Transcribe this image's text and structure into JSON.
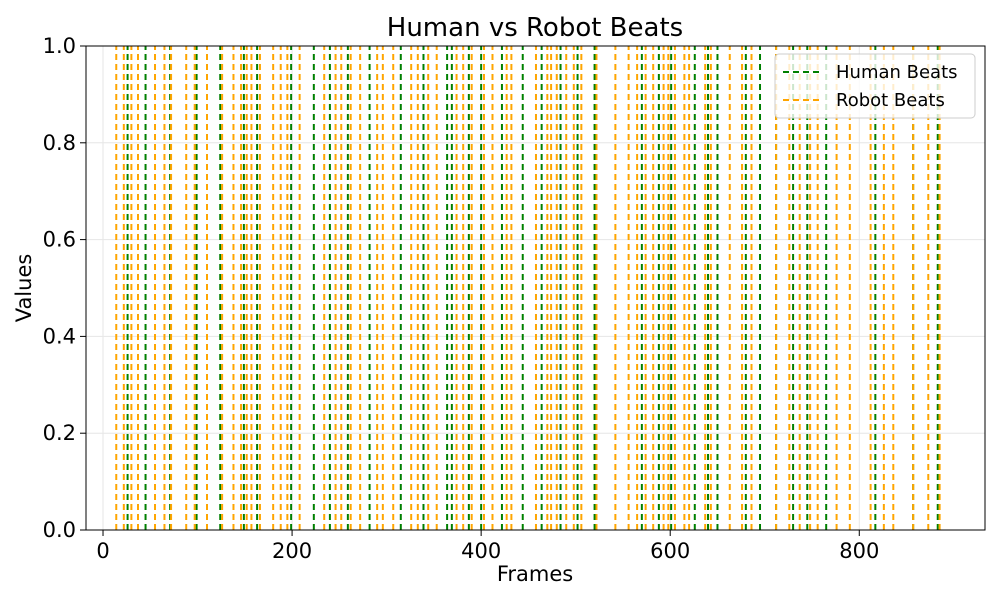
{
  "chart_data": {
    "type": "vlines",
    "title": "Human vs Robot Beats",
    "xlabel": "Frames",
    "ylabel": "Values",
    "xlim": [
      -18,
      933
    ],
    "ylim": [
      0,
      1
    ],
    "xticks": [
      0,
      200,
      400,
      600,
      800
    ],
    "yticks": [
      0.0,
      0.2,
      0.4,
      0.6,
      0.8,
      1.0
    ],
    "xtick_labels": [
      "0",
      "200",
      "400",
      "600",
      "800"
    ],
    "ytick_labels": [
      "0.0",
      "0.2",
      "0.4",
      "0.6",
      "0.8",
      "1.0"
    ],
    "grid": true,
    "legend_position": "top-right",
    "series": [
      {
        "name": "Human Beats",
        "color": "#008000",
        "line_style": "dashed",
        "x": [
          26,
          45,
          71,
          99,
          124,
          149,
          163,
          199,
          223,
          240,
          259,
          282,
          315,
          339,
          364,
          369,
          387,
          400,
          422,
          444,
          464,
          484,
          502,
          520,
          570,
          588,
          601,
          626,
          640,
          650,
          680,
          695,
          712,
          730,
          745,
          765,
          817,
          857,
          883
        ]
      },
      {
        "name": "Robot Beats",
        "color": "#FFA500",
        "line_style": "dashed",
        "x": [
          14,
          22,
          30,
          37,
          55,
          65,
          72,
          88,
          97,
          110,
          126,
          138,
          146,
          152,
          157,
          166,
          180,
          188,
          195,
          208,
          234,
          246,
          252,
          262,
          272,
          290,
          296,
          307,
          326,
          333,
          344,
          353,
          374,
          381,
          390,
          403,
          412,
          427,
          432,
          458,
          470,
          474,
          480,
          490,
          498,
          506,
          522,
          542,
          556,
          565,
          574,
          582,
          593,
          598,
          605,
          615,
          620,
          637,
          643,
          663,
          676,
          686,
          712,
          726,
          737,
          748,
          756,
          776,
          790,
          812,
          826,
          836,
          857,
          873,
          885
        ]
      }
    ]
  }
}
